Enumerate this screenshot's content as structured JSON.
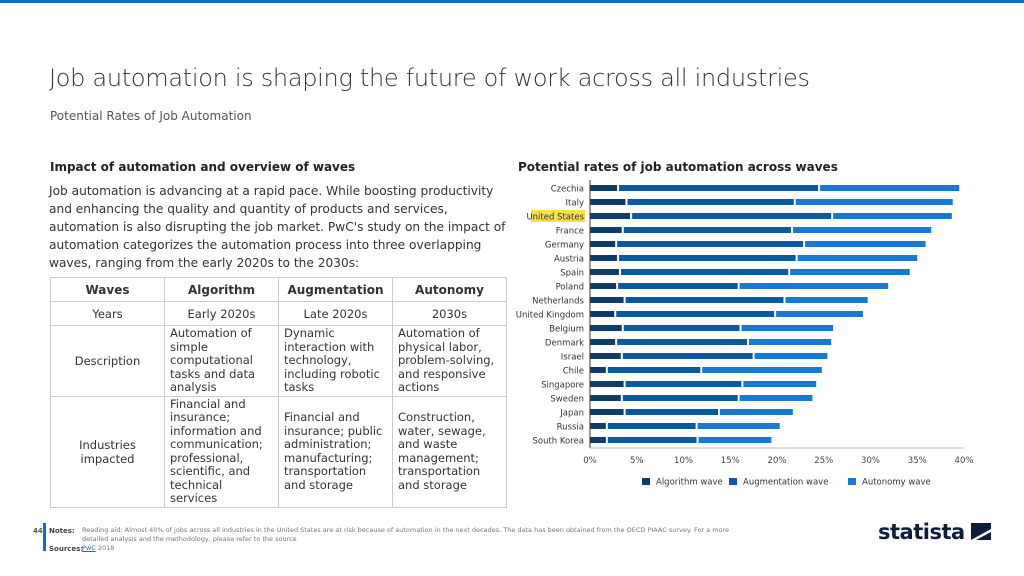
{
  "header": {
    "title": "Job automation is shaping the future of work across all industries",
    "subtitle": "Potential Rates of Job Automation"
  },
  "left": {
    "heading": "Impact of automation and overview of waves",
    "paragraph": "Job automation is advancing at a rapid pace. While boosting productivity and enhancing the quality and quantity of products and services, automation is also disrupting the job market. PwC's study on the impact of automation categorizes the automation process into three overlapping waves, ranging from the early 2020s to the 2030s:",
    "table": {
      "headers": [
        "Waves",
        "Algorithm",
        "Augmentation",
        "Autonomy"
      ],
      "rows": [
        [
          "Years",
          "Early 2020s",
          "Late 2020s",
          "2030s"
        ],
        [
          "Description",
          "Automation of simple computational tasks and data analysis",
          "Dynamic interaction with technology, including robotic tasks",
          "Automation of physical labor, problem-solving, and responsive actions"
        ],
        [
          "Industries impacted",
          "Financial and insurance; information and communication; professional, scientific, and technical services",
          "Financial and insurance; public administration; manufacturing; transportation and storage",
          "Construction, water, sewage, and waste management; transportation and storage"
        ]
      ]
    }
  },
  "chart_data": {
    "type": "bar",
    "stacked": true,
    "orientation": "horizontal",
    "title": "Potential rates of job automation across waves",
    "categories": [
      "Czechia",
      "Italy",
      "United States",
      "France",
      "Germany",
      "Austria",
      "Spain",
      "Poland",
      "Netherlands",
      "United Kingdom",
      "Belgium",
      "Denmark",
      "Israel",
      "Chile",
      "Singapore",
      "Sweden",
      "Japan",
      "Russia",
      "South Korea"
    ],
    "highlight": "United States",
    "series": [
      {
        "name": "Algorithm wave",
        "color": "#0f3b66",
        "values": [
          3.0,
          3.9,
          4.4,
          3.5,
          2.8,
          3.0,
          3.2,
          2.9,
          3.7,
          2.7,
          3.5,
          2.8,
          3.4,
          1.8,
          3.7,
          3.4,
          3.7,
          1.8,
          1.8
        ]
      },
      {
        "name": "Augmentation wave",
        "color": "#0b5aa0",
        "values": [
          21.5,
          18.0,
          21.5,
          18.1,
          20.1,
          19.1,
          18.1,
          13.0,
          17.1,
          17.1,
          12.6,
          14.1,
          14.1,
          10.1,
          12.6,
          12.5,
          10.1,
          9.6,
          9.7
        ]
      },
      {
        "name": "Autonomy wave",
        "color": "#1779d2",
        "values": [
          15.1,
          17.0,
          12.9,
          15.0,
          13.1,
          13.0,
          13.0,
          16.1,
          9.0,
          9.5,
          10.0,
          9.0,
          8.0,
          13.0,
          8.0,
          8.0,
          8.0,
          9.0,
          8.0
        ]
      }
    ],
    "xticks": [
      "0%",
      "5%",
      "10%",
      "15%",
      "20%",
      "25%",
      "30%",
      "35%",
      "40%"
    ],
    "xlim": [
      0,
      40
    ],
    "legend": "bottom"
  },
  "footer": {
    "page": "44",
    "notes_label": "Notes:",
    "notes": "Reading aid: Almost 40% of jobs across all industries in the United States are at risk because of automation in the next decades. The data has been obtained from the OECD PIAAC survey. For a more detailed analysis and the methodology, please refer to the source",
    "sources_label": "Sources:",
    "source_link": "PwC",
    "source_year": "2018",
    "logo": "statista"
  }
}
